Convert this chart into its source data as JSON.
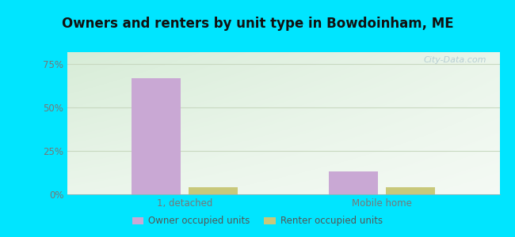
{
  "title": "Owners and renters by unit type in Bowdoinham, ME",
  "categories": [
    "1, detached",
    "Mobile home"
  ],
  "owner_values": [
    67.0,
    13.0
  ],
  "renter_values": [
    4.0,
    4.0
  ],
  "owner_color": "#c9a8d4",
  "renter_color": "#c8c87a",
  "yticks": [
    0,
    25,
    50,
    75
  ],
  "yticklabels": [
    "0%",
    "25%",
    "50%",
    "75%"
  ],
  "ylim": [
    0,
    82
  ],
  "bar_width": 0.25,
  "background_color": "#00e5ff",
  "watermark": "City-Data.com",
  "legend_labels": [
    "Owner occupied units",
    "Renter occupied units"
  ],
  "tick_color": "#777777",
  "grid_color": "#c8d8c0",
  "title_fontsize": 12,
  "tick_fontsize": 8.5
}
